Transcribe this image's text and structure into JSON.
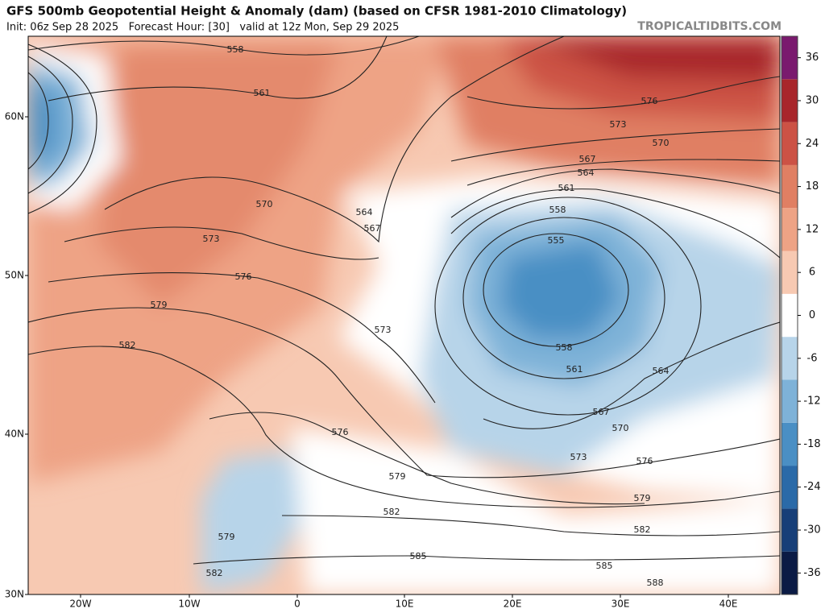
{
  "header": {
    "title": "GFS 500mb Geopotential Height & Anomaly (dam) (based on CFSR 1981-2010 Climatology)",
    "subtitle": "Init: 06z Sep 28 2025   Forecast Hour: [30]   valid at 12z Mon, Sep 29 2025",
    "site": "TROPICALTIDBITS.COM"
  },
  "lat_labels": [
    "60N",
    "50N",
    "40N",
    "30N"
  ],
  "lon_labels": [
    "20W",
    "10W",
    "0",
    "10E",
    "20E",
    "30E",
    "40E"
  ],
  "colorbar": {
    "range": [
      -39,
      39
    ],
    "ticks": [
      36,
      30,
      24,
      18,
      12,
      6,
      0,
      -6,
      -12,
      -18,
      -24,
      -30,
      -36
    ],
    "colors": [
      "#0b1b45",
      "#173f78",
      "#2a6aa8",
      "#4a8fc4",
      "#7eb2d8",
      "#b7d4e9",
      "#ffffff",
      "#f7c9b2",
      "#eea385",
      "#e07f63",
      "#cc5245",
      "#a8262b",
      "#7a1a6e"
    ]
  },
  "contour_labels": [
    558,
    561,
    570,
    573,
    576,
    579,
    582,
    564,
    567,
    573,
    576,
    579,
    582,
    585,
    555,
    558,
    558,
    561,
    564,
    567,
    570,
    573,
    576,
    579,
    582,
    585,
    588,
    579,
    582,
    561,
    564,
    567,
    570,
    573,
    576
  ]
}
